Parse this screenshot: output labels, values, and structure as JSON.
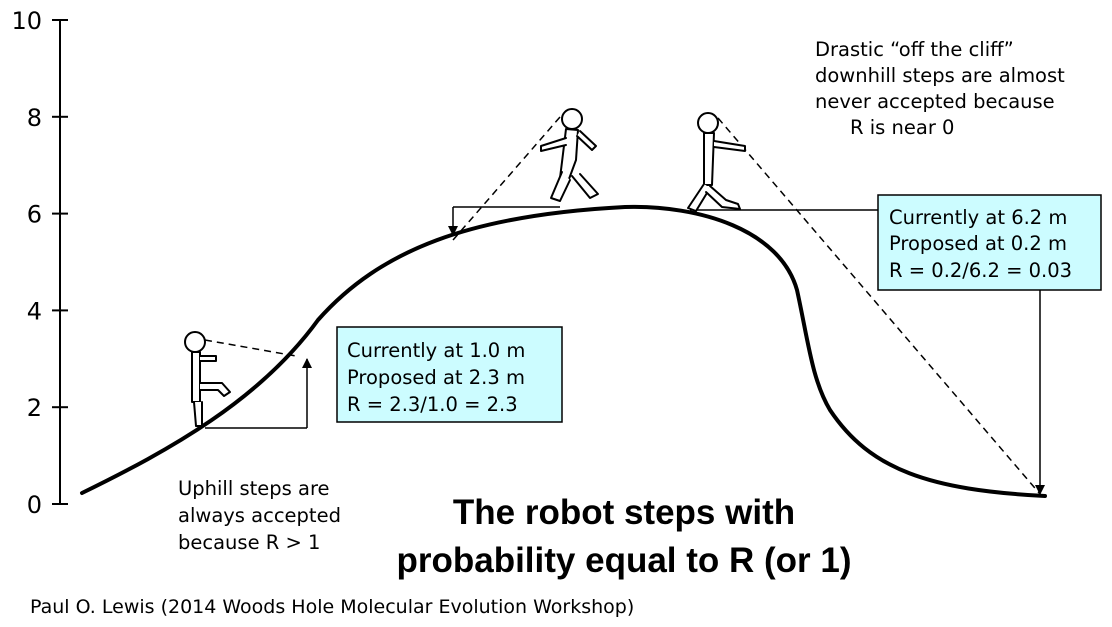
{
  "y_axis": {
    "range": [
      0,
      10
    ],
    "ticks": [
      "0",
      "2",
      "4",
      "6",
      "8",
      "10"
    ]
  },
  "callouts": {
    "uphill": [
      "Currently at 1.0 m",
      "Proposed at 2.3 m",
      "R = 2.3/1.0 = 2.3"
    ],
    "downhill": [
      "Currently at 6.2 m",
      "Proposed at 0.2 m",
      "R = 0.2/6.2 = 0.03"
    ],
    "fill_color": "#ccfcff"
  },
  "notes": {
    "uphill": [
      "Uphill steps are",
      "always accepted",
      "because R > 1"
    ],
    "cliff": [
      "Drastic “off the cliff”",
      "downhill steps are almost",
      "never accepted because",
      "R is near 0"
    ]
  },
  "headline": [
    "The robot steps with",
    "probability equal to R (or 1)"
  ],
  "credit": "Paul O. Lewis (2014 Woods Hole Molecular Evolution Workshop)",
  "icons": [
    "robot-walker-icon"
  ]
}
